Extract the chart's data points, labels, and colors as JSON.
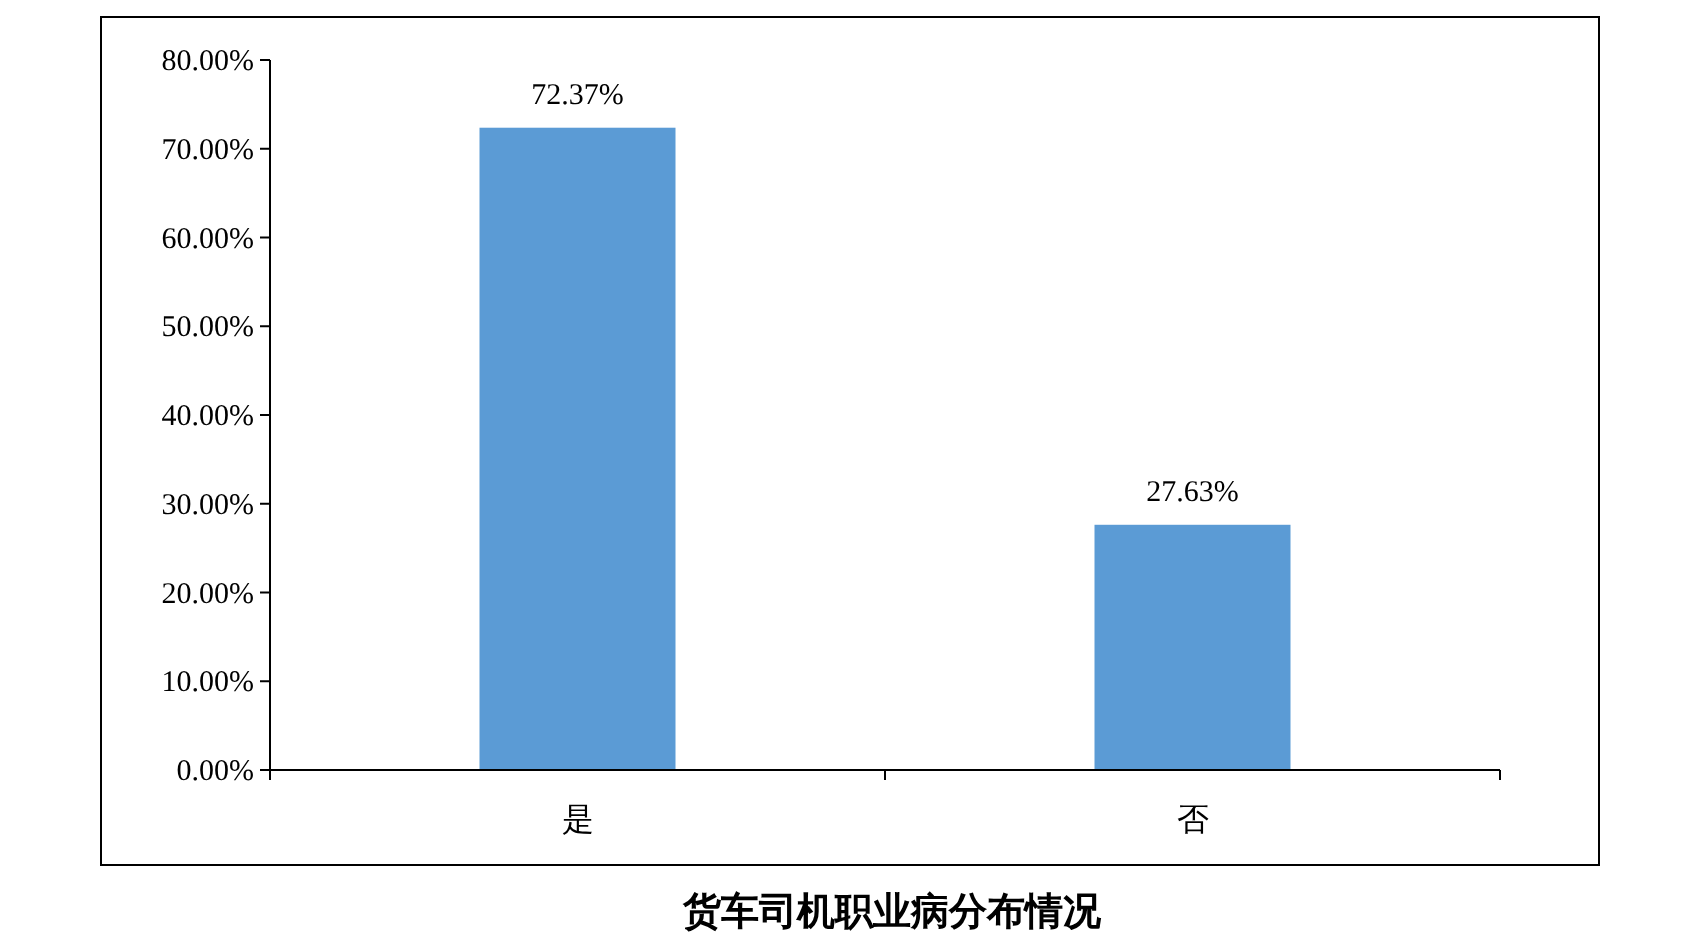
{
  "chart_data": {
    "type": "bar",
    "title": "货车司机职业病分布情况",
    "categories": [
      "是",
      "否"
    ],
    "values": [
      72.37,
      27.63
    ],
    "value_labels": [
      "72.37%",
      "27.63%"
    ],
    "color": "#5b9bd5",
    "ylim": [
      0,
      80
    ],
    "yticks": [
      {
        "value": 0,
        "label": "0.00%"
      },
      {
        "value": 10,
        "label": "10.00%"
      },
      {
        "value": 20,
        "label": "20.00%"
      },
      {
        "value": 30,
        "label": "30.00%"
      },
      {
        "value": 40,
        "label": "40.00%"
      },
      {
        "value": 50,
        "label": "50.00%"
      },
      {
        "value": 60,
        "label": "60.00%"
      },
      {
        "value": 70,
        "label": "70.00%"
      },
      {
        "value": 80,
        "label": "80.00%"
      }
    ],
    "grid": false
  }
}
